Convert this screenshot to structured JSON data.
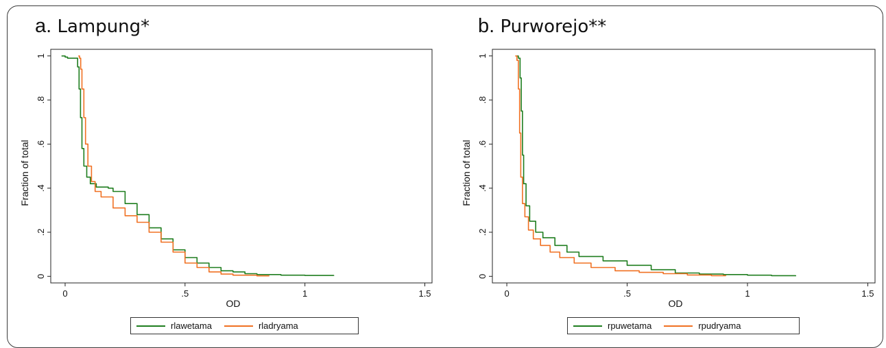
{
  "chart_data": [
    {
      "type": "line",
      "title": "a. Lampung*",
      "title_letter": "a.",
      "title_text": " Lampung*",
      "xlabel": "OD",
      "ylabel": "Fraction of total",
      "xlim": [
        -0.06,
        1.53
      ],
      "ylim": [
        -0.03,
        1.03
      ],
      "xticks": [
        {
          "v": 0,
          "label": "0"
        },
        {
          "v": 0.5,
          "label": ".5"
        },
        {
          "v": 1,
          "label": "1"
        },
        {
          "v": 1.5,
          "label": "1.5"
        }
      ],
      "yticks": [
        {
          "v": 0,
          "label": "0"
        },
        {
          "v": 0.2,
          "label": ".2"
        },
        {
          "v": 0.4,
          "label": ".4"
        },
        {
          "v": 0.6,
          "label": ".6"
        },
        {
          "v": 0.8,
          "label": ".8"
        },
        {
          "v": 1,
          "label": "1"
        }
      ],
      "legend_position": "bottom",
      "series": [
        {
          "name": "rlawetama",
          "color": "#1e7d1e",
          "points": [
            [
              -0.015,
              1.0
            ],
            [
              0.0,
              0.995
            ],
            [
              0.01,
              0.99
            ],
            [
              0.045,
              0.99
            ],
            [
              0.052,
              0.95
            ],
            [
              0.058,
              0.85
            ],
            [
              0.064,
              0.72
            ],
            [
              0.07,
              0.58
            ],
            [
              0.078,
              0.5
            ],
            [
              0.09,
              0.45
            ],
            [
              0.105,
              0.42
            ],
            [
              0.13,
              0.405
            ],
            [
              0.18,
              0.4
            ],
            [
              0.2,
              0.385
            ],
            [
              0.25,
              0.33
            ],
            [
              0.3,
              0.28
            ],
            [
              0.35,
              0.22
            ],
            [
              0.4,
              0.17
            ],
            [
              0.45,
              0.12
            ],
            [
              0.5,
              0.085
            ],
            [
              0.55,
              0.06
            ],
            [
              0.6,
              0.04
            ],
            [
              0.65,
              0.025
            ],
            [
              0.7,
              0.02
            ],
            [
              0.75,
              0.012
            ],
            [
              0.8,
              0.008
            ],
            [
              0.9,
              0.005
            ],
            [
              1.0,
              0.004
            ],
            [
              1.12,
              0.002
            ]
          ]
        },
        {
          "name": "rladryama",
          "color": "#f07022",
          "points": [
            [
              0.055,
              1.0
            ],
            [
              0.06,
              0.99
            ],
            [
              0.065,
              0.94
            ],
            [
              0.07,
              0.85
            ],
            [
              0.078,
              0.72
            ],
            [
              0.085,
              0.6
            ],
            [
              0.095,
              0.5
            ],
            [
              0.11,
              0.43
            ],
            [
              0.125,
              0.385
            ],
            [
              0.15,
              0.36
            ],
            [
              0.2,
              0.31
            ],
            [
              0.25,
              0.275
            ],
            [
              0.3,
              0.245
            ],
            [
              0.35,
              0.2
            ],
            [
              0.4,
              0.155
            ],
            [
              0.45,
              0.11
            ],
            [
              0.5,
              0.06
            ],
            [
              0.55,
              0.04
            ],
            [
              0.6,
              0.02
            ],
            [
              0.65,
              0.01
            ],
            [
              0.7,
              0.005
            ],
            [
              0.8,
              0.002
            ],
            [
              0.85,
              0.0
            ]
          ]
        }
      ]
    },
    {
      "type": "line",
      "title": "b. Purworejo**",
      "title_letter": "b.",
      "title_text": " Purworejo**",
      "xlabel": "OD",
      "ylabel": "Fraction of total",
      "xlim": [
        -0.06,
        1.53
      ],
      "ylim": [
        -0.03,
        1.03
      ],
      "xticks": [
        {
          "v": 0,
          "label": "0"
        },
        {
          "v": 0.5,
          "label": ".5"
        },
        {
          "v": 1,
          "label": "1"
        },
        {
          "v": 1.5,
          "label": "1.5"
        }
      ],
      "yticks": [
        {
          "v": 0,
          "label": "0"
        },
        {
          "v": 0.2,
          "label": ".2"
        },
        {
          "v": 0.4,
          "label": ".4"
        },
        {
          "v": 0.6,
          "label": ".6"
        },
        {
          "v": 0.8,
          "label": ".8"
        },
        {
          "v": 1,
          "label": "1"
        }
      ],
      "legend_position": "bottom",
      "series": [
        {
          "name": "rpuwetama",
          "color": "#1e7d1e",
          "points": [
            [
              0.04,
              1.0
            ],
            [
              0.048,
              0.99
            ],
            [
              0.055,
              0.9
            ],
            [
              0.06,
              0.75
            ],
            [
              0.065,
              0.55
            ],
            [
              0.07,
              0.42
            ],
            [
              0.08,
              0.32
            ],
            [
              0.095,
              0.25
            ],
            [
              0.12,
              0.2
            ],
            [
              0.15,
              0.175
            ],
            [
              0.2,
              0.14
            ],
            [
              0.25,
              0.11
            ],
            [
              0.3,
              0.09
            ],
            [
              0.4,
              0.07
            ],
            [
              0.5,
              0.05
            ],
            [
              0.6,
              0.03
            ],
            [
              0.7,
              0.015
            ],
            [
              0.8,
              0.01
            ],
            [
              0.9,
              0.008
            ],
            [
              1.0,
              0.005
            ],
            [
              1.1,
              0.003
            ],
            [
              1.2,
              0.0
            ]
          ]
        },
        {
          "name": "rpudryama",
          "color": "#f07022",
          "points": [
            [
              0.035,
              1.0
            ],
            [
              0.042,
              0.98
            ],
            [
              0.048,
              0.85
            ],
            [
              0.053,
              0.65
            ],
            [
              0.058,
              0.45
            ],
            [
              0.065,
              0.33
            ],
            [
              0.075,
              0.27
            ],
            [
              0.09,
              0.21
            ],
            [
              0.11,
              0.17
            ],
            [
              0.14,
              0.14
            ],
            [
              0.18,
              0.11
            ],
            [
              0.22,
              0.085
            ],
            [
              0.28,
              0.06
            ],
            [
              0.35,
              0.04
            ],
            [
              0.45,
              0.025
            ],
            [
              0.55,
              0.018
            ],
            [
              0.65,
              0.012
            ],
            [
              0.75,
              0.006
            ],
            [
              0.85,
              0.003
            ],
            [
              0.91,
              0.002
            ]
          ]
        }
      ]
    }
  ]
}
